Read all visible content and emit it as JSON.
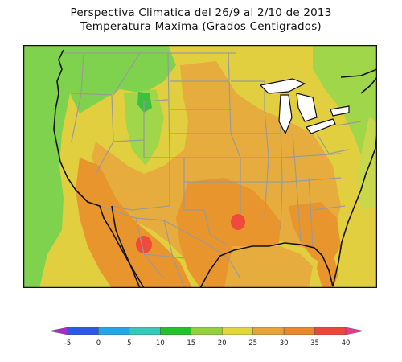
{
  "title": "Perspectiva Climatica del 26/9 al 2/10 de 2013",
  "subtitle": "Temperatura Maxima (Grados Centigrados)",
  "legend": {
    "ticks": [
      "-5",
      "0",
      "5",
      "10",
      "15",
      "20",
      "25",
      "30",
      "35",
      "40"
    ],
    "colors": [
      "#a82cc8",
      "#2b58e8",
      "#21a6e8",
      "#33c8b8",
      "#22c32a",
      "#93d13c",
      "#e2d63a",
      "#e7a23a",
      "#e9872a",
      "#ef4538",
      "#e8398e"
    ]
  },
  "map_colors": {
    "green": "#7fd24e",
    "dark_green": "#3cbf45",
    "yellow_green": "#c9d84a",
    "yellow": "#e2cf3f",
    "light_orange": "#e6ad3e",
    "orange": "#e8952e",
    "red": "#ef4a3c",
    "borders": "#9a9a9a",
    "coast": "#111111"
  }
}
